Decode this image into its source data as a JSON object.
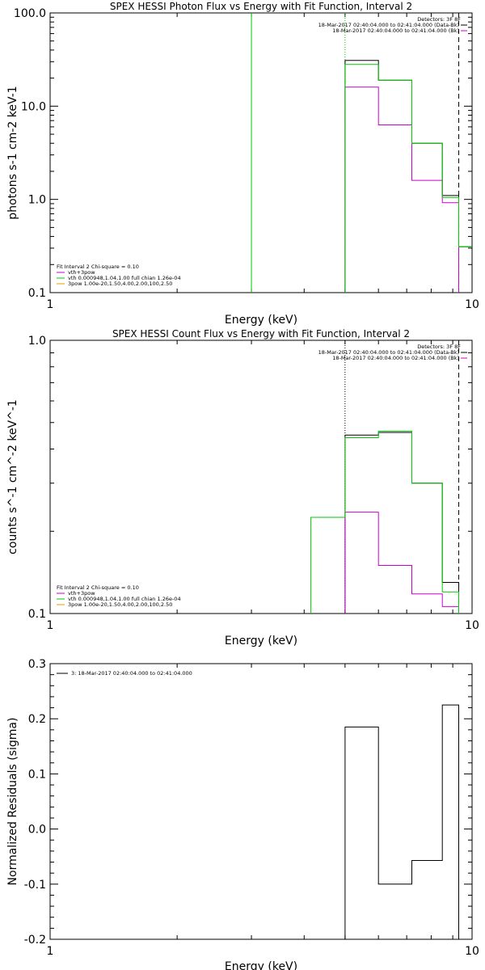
{
  "chart_data": [
    {
      "type": "line",
      "title": "SPEX HESSI Photon Flux vs Energy with Fit Function, Interval 2",
      "xlabel": "Energy (keV)",
      "ylabel": "photons s-1 cm-2 keV-1",
      "xscale": "log",
      "yscale": "log",
      "xlim": [
        1,
        10
      ],
      "ylim": [
        0.1,
        100
      ],
      "x_ticks": [
        "1",
        "10"
      ],
      "y_ticks": [
        "0.1",
        "1.0",
        "10.0",
        "100.0"
      ],
      "legend_top": {
        "title": "Detectors: 3F 8F",
        "entries": [
          {
            "label": "18-Mar-2017 02:40:04.000 to 02:41:04.000 (Data-Bk)",
            "color": "#000000"
          },
          {
            "label": "18-Mar-2017 02:40:04.000 to 02:41:04.000 (Bk)",
            "color": "#cc00cc"
          }
        ]
      },
      "legend_bottom": {
        "title": "Fit Interval 2   Chi-square = 0.10",
        "entries": [
          {
            "label": "vth+3pow",
            "color": "#cc00cc"
          },
          {
            "label": "vth 0.000948,1.04,1.00  full chian 1.26e-04",
            "color": "#00cc00"
          },
          {
            "label": "3pow 1.00e-20,1.50,4.00,2.00,100,2.50",
            "color": "#e0a000"
          }
        ]
      },
      "series": [
        {
          "name": "Data-Bk",
          "color": "#000000",
          "x": [
            5.0,
            6.0,
            7.2,
            8.5,
            9.3,
            10.5
          ],
          "y": [
            31,
            19,
            4.0,
            1.1,
            0.31,
            0.31
          ]
        },
        {
          "name": "Bk",
          "color": "#cc00cc",
          "x": [
            5.0,
            6.0,
            7.2,
            8.5,
            9.3
          ],
          "y": [
            16,
            6.3,
            1.6,
            0.92,
            0.92
          ]
        },
        {
          "name": "vth",
          "color": "#00cc00",
          "x": [
            5.0,
            6.0,
            7.2,
            8.5,
            9.3,
            10.5
          ],
          "y": [
            28,
            19,
            4.0,
            1.05,
            0.31,
            0.31
          ]
        }
      ],
      "vlines": [
        {
          "x": 3.0,
          "color": "#00cc00",
          "style": "solid"
        },
        {
          "x": 5.0,
          "color": "#00cc00",
          "style": "dotted"
        },
        {
          "x": 9.3,
          "color": "#000000",
          "style": "dashed"
        }
      ]
    },
    {
      "type": "line",
      "title": "SPEX HESSI Count Flux vs Energy with Fit Function, Interval 2",
      "xlabel": "Energy (keV)",
      "ylabel": "counts s^-1 cm^-2 keV^-1",
      "xscale": "log",
      "yscale": "log",
      "xlim": [
        1,
        10
      ],
      "ylim": [
        0.1,
        1.0
      ],
      "x_ticks": [
        "1",
        "10"
      ],
      "y_ticks": [
        "0.1",
        "1.0"
      ],
      "legend_top": {
        "title": "Detectors: 3F 8F",
        "entries": [
          {
            "label": "18-Mar-2017 02:40:04.000 to 02:41:04.000 (Data-Bk)",
            "color": "#000000"
          },
          {
            "label": "18-Mar-2017 02:40:04.000 to 02:41:04.000 (Bk)",
            "color": "#cc00cc"
          }
        ]
      },
      "legend_bottom": {
        "title": "Fit Interval 2   Chi-square = 0.10",
        "entries": [
          {
            "label": "vth+3pow",
            "color": "#cc00cc"
          },
          {
            "label": "vth 0.000948,1.04,1.00  full chian 1.26e-04",
            "color": "#00cc00"
          },
          {
            "label": "3pow 1.00e-20,1.50,4.00,2.00,100,2.50",
            "color": "#e0a000"
          }
        ]
      },
      "series": [
        {
          "name": "Data-Bk",
          "color": "#000000",
          "x": [
            5.0,
            6.0,
            7.2,
            8.5,
            9.3
          ],
          "y": [
            0.45,
            0.46,
            0.3,
            0.13,
            0.13
          ]
        },
        {
          "name": "Bk",
          "color": "#cc00cc",
          "x": [
            5.0,
            6.0,
            7.2,
            8.5,
            9.3
          ],
          "y": [
            0.235,
            0.15,
            0.118,
            0.106,
            0.106
          ]
        },
        {
          "name": "vth",
          "color": "#00cc00",
          "x": [
            4.15,
            5.0,
            6.0,
            7.2,
            8.5,
            9.3
          ],
          "y": [
            0.225,
            0.44,
            0.465,
            0.3,
            0.12,
            0.12
          ]
        }
      ],
      "vlines": [
        {
          "x": 5.0,
          "color": "#000000",
          "style": "dotted"
        },
        {
          "x": 9.3,
          "color": "#000000",
          "style": "dashed"
        }
      ]
    },
    {
      "type": "line",
      "title": "",
      "xlabel": "Energy (keV)",
      "ylabel": "Normalized Residuals (sigma)",
      "xscale": "log",
      "yscale": "linear",
      "xlim": [
        1,
        10
      ],
      "ylim": [
        -0.2,
        0.3
      ],
      "x_ticks": [
        "1",
        "10"
      ],
      "y_ticks": [
        "-0.2",
        "-0.1",
        "0.0",
        "0.1",
        "0.2",
        "0.3"
      ],
      "legend_top": {
        "title": "",
        "entries": [
          {
            "label": "3: 18-Mar-2017 02:40:04.000 to 02:41:04.000",
            "color": "#000000"
          }
        ]
      },
      "series": [
        {
          "name": "Residuals",
          "color": "#000000",
          "x": [
            5.0,
            6.0,
            7.2,
            8.5,
            9.3
          ],
          "y": [
            0.185,
            -0.1,
            -0.057,
            0.225,
            0.225
          ]
        }
      ]
    }
  ]
}
